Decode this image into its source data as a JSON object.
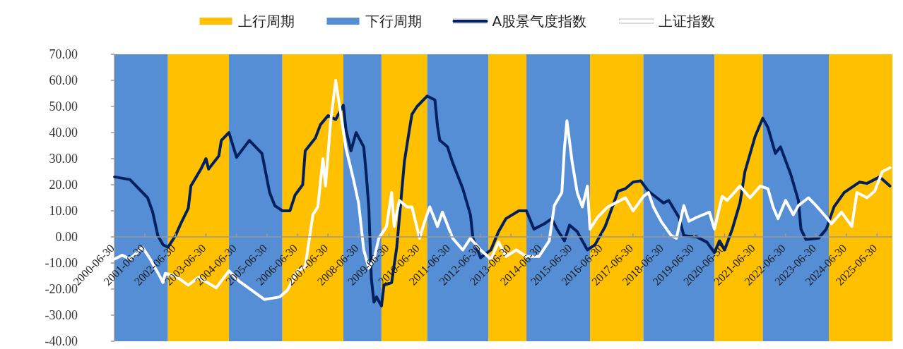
{
  "chart_data": {
    "type": "line",
    "xlim": [
      "2000-06-30",
      "2025-12-31"
    ],
    "xticks": [
      {
        "value": "2000-06-30",
        "label": "2000-06-30"
      },
      {
        "value": "2001-06-30",
        "label": "2001-06-30"
      },
      {
        "value": "2002-06-30",
        "label": "2002-06-30"
      },
      {
        "value": "2003-06-30",
        "label": "2003-06-30"
      },
      {
        "value": "2004-06-30",
        "label": "2004-06-30"
      },
      {
        "value": "2005-06-30",
        "label": "2005-06-30"
      },
      {
        "value": "2006-06-30",
        "label": "2006-06-30"
      },
      {
        "value": "2007-06-30",
        "label": "2007-06-30"
      },
      {
        "value": "2008-06-30",
        "label": "2008-06-30"
      },
      {
        "value": "2009-06-30",
        "label": "2009-06-30"
      },
      {
        "value": "2010-06-30",
        "label": "2010-06-30"
      },
      {
        "value": "2011-06-30",
        "label": "2011-06-30"
      },
      {
        "value": "2012-06-30",
        "label": "2012-06-30"
      },
      {
        "value": "2013-06-30",
        "label": "2013-06-30"
      },
      {
        "value": "2014-06-30",
        "label": "2014-06-30"
      },
      {
        "value": "2015-06-30",
        "label": "2015-06-30"
      },
      {
        "value": "2016-06-30",
        "label": "2016-06-30"
      },
      {
        "value": "2017-06-30",
        "label": "2017-06-30"
      },
      {
        "value": "2018-06-30",
        "label": "2018-06-30"
      },
      {
        "value": "2019-06-30",
        "label": "2019-06-30"
      },
      {
        "value": "2020-06-30",
        "label": "2020-06-30"
      },
      {
        "value": "2021-06-30",
        "label": "2021-06-30"
      },
      {
        "value": "2022-06-30",
        "label": "2022-06-30"
      },
      {
        "value": "2023-06-30",
        "label": "2023-06-30"
      },
      {
        "value": "2024-06-30",
        "label": "2024-06-30"
      },
      {
        "value": "2025-06-30",
        "label": "2025-06-30"
      }
    ],
    "ylim": [
      -40,
      70
    ],
    "yticks": [
      {
        "value": -40,
        "label": "-40.00"
      },
      {
        "value": -30,
        "label": "-30.00"
      },
      {
        "value": -20,
        "label": "-20.00"
      },
      {
        "value": -10,
        "label": "-10.00"
      },
      {
        "value": 0,
        "label": "0.00"
      },
      {
        "value": 10,
        "label": "10.00"
      },
      {
        "value": 20,
        "label": "20.00"
      },
      {
        "value": 30,
        "label": "30.00"
      },
      {
        "value": 40,
        "label": "40.00"
      },
      {
        "value": 50,
        "label": "50.00"
      },
      {
        "value": 60,
        "label": "60.00"
      },
      {
        "value": 70,
        "label": "70.00"
      }
    ],
    "legend": "top",
    "bands": [
      {
        "axis": "x",
        "from": "2000-06-30",
        "to": "2002-04",
        "label": "下行周期",
        "color": "#558ed5"
      },
      {
        "axis": "x",
        "from": "2002-04",
        "to": "2004-04",
        "label": "上行周期",
        "color": "#ffc000"
      },
      {
        "axis": "x",
        "from": "2004-04",
        "to": "2006-01",
        "color": "#558ed5"
      },
      {
        "axis": "x",
        "from": "2006-01",
        "to": "2008-01",
        "color": "#ffc000"
      },
      {
        "axis": "x",
        "from": "2008-01",
        "to": "2009-04",
        "color": "#558ed5"
      },
      {
        "axis": "x",
        "from": "2009-04",
        "to": "2010-10",
        "color": "#ffc000"
      },
      {
        "axis": "x",
        "from": "2010-10",
        "to": "2012-10",
        "color": "#558ed5"
      },
      {
        "axis": "x",
        "from": "2012-10",
        "to": "2014-01",
        "color": "#ffc000"
      },
      {
        "axis": "x",
        "from": "2014-01",
        "to": "2016-02",
        "color": "#558ed5"
      },
      {
        "axis": "x",
        "from": "2016-02",
        "to": "2017-11",
        "color": "#ffc000"
      },
      {
        "axis": "x",
        "from": "2017-11",
        "to": "2020-03",
        "color": "#558ed5"
      },
      {
        "axis": "x",
        "from": "2020-03",
        "to": "2021-10",
        "color": "#ffc000"
      },
      {
        "axis": "x",
        "from": "2021-10",
        "to": "2023-12",
        "color": "#558ed5"
      },
      {
        "axis": "x",
        "from": "2023-12",
        "to": "2025-12-31",
        "color": "#ffc000"
      }
    ],
    "series": [
      {
        "name": "A股景气度指数",
        "color": "#002060",
        "x": [
          "2000-07",
          "2001-01",
          "2001-08",
          "2001-10",
          "2001-12",
          "2002-02",
          "2002-04",
          "2002-07",
          "2002-09",
          "2002-12",
          "2003-01",
          "2003-05",
          "2003-07",
          "2003-08",
          "2003-12",
          "2004-01",
          "2004-04",
          "2004-07",
          "2004-12",
          "2005-05",
          "2005-08",
          "2005-10",
          "2006-01",
          "2006-04",
          "2006-06",
          "2006-09",
          "2006-10",
          "2007-02",
          "2007-04",
          "2007-07",
          "2007-10",
          "2008-01",
          "2008-02",
          "2008-04",
          "2008-06",
          "2008-09",
          "2008-10",
          "2008-11",
          "2008-12",
          "2009-01",
          "2009-02",
          "2009-04",
          "2009-05",
          "2009-08",
          "2009-10",
          "2010-01",
          "2010-03",
          "2010-04",
          "2010-06",
          "2010-10",
          "2011-01",
          "2011-02",
          "2011-03",
          "2011-06",
          "2011-08",
          "2011-12",
          "2012-03",
          "2012-04",
          "2012-07",
          "2012-11",
          "2013-02",
          "2013-05",
          "2013-10",
          "2014-01",
          "2014-04",
          "2014-08",
          "2014-11",
          "2015-01",
          "2015-04",
          "2015-06",
          "2015-09",
          "2016-01",
          "2016-04",
          "2016-08",
          "2016-11",
          "2017-01",
          "2017-04",
          "2017-07",
          "2017-10",
          "2018-01",
          "2018-07",
          "2018-09",
          "2019-01",
          "2019-03",
          "2019-08",
          "2019-12",
          "2020-03",
          "2020-05",
          "2020-07",
          "2020-10",
          "2021-01",
          "2021-03",
          "2021-07",
          "2021-10",
          "2021-12",
          "2022-03",
          "2022-05",
          "2022-09",
          "2022-12",
          "2023-01",
          "2023-03",
          "2023-08",
          "2023-11",
          "2024-02",
          "2024-06",
          "2024-12",
          "2025-03",
          "2025-08",
          "2025-12"
        ],
        "values": [
          23,
          22,
          15,
          9.5,
          0.5,
          -3,
          -4,
          0.5,
          5,
          11,
          19.5,
          26,
          30,
          26,
          31,
          37,
          40,
          30.5,
          37,
          32,
          17,
          12,
          10,
          10,
          16,
          20,
          33,
          38,
          43,
          46.5,
          45,
          50.5,
          41,
          33,
          40,
          34.5,
          24,
          11,
          -16,
          -25,
          -23,
          -26.5,
          -18.5,
          -17.5,
          -4,
          29,
          41,
          47,
          50,
          54,
          52.5,
          42.5,
          37,
          34.5,
          28.5,
          18.5,
          8.5,
          -0.5,
          -8,
          -5,
          2,
          7,
          10,
          10,
          3,
          5,
          7,
          3,
          -1.5,
          4.5,
          2,
          -5,
          -3,
          4,
          12,
          17.5,
          18.5,
          21,
          21.5,
          17.5,
          13,
          14,
          7.5,
          0.5,
          0,
          -2,
          -6,
          -1.5,
          -5,
          3,
          13,
          25,
          38.5,
          45.5,
          42,
          32,
          34.5,
          24,
          14,
          3,
          -1,
          -0.5,
          3,
          11.5,
          17,
          21,
          20.5,
          23,
          19.5
        ]
      },
      {
        "name": "上证指数",
        "color": "#ffffff",
        "x": [
          "2000-07",
          "2000-10",
          "2001-01",
          "2001-06",
          "2001-09",
          "2002-01",
          "2002-02",
          "2002-03",
          "2002-07",
          "2002-12",
          "2003-04",
          "2003-11",
          "2004-04",
          "2004-08",
          "2005-01",
          "2005-06",
          "2005-12",
          "2006-03",
          "2006-07",
          "2006-10",
          "2007-01",
          "2007-03",
          "2007-05",
          "2007-06",
          "2007-08",
          "2007-10",
          "2007-12",
          "2008-02",
          "2008-05",
          "2008-07",
          "2008-09",
          "2008-11",
          "2009-01",
          "2009-03",
          "2009-06",
          "2009-08",
          "2009-09",
          "2009-11",
          "2010-02",
          "2010-04",
          "2010-07",
          "2010-09",
          "2010-11",
          "2011-02",
          "2011-04",
          "2011-08",
          "2011-12",
          "2012-03",
          "2012-07",
          "2012-11",
          "2013-02",
          "2013-05",
          "2013-09",
          "2014-01",
          "2014-06",
          "2014-10",
          "2014-12",
          "2015-03",
          "2015-04",
          "2015-05",
          "2015-07",
          "2015-09",
          "2015-11",
          "2016-01",
          "2016-02",
          "2016-05",
          "2016-09",
          "2016-12",
          "2017-04",
          "2017-07",
          "2017-11",
          "2018-01",
          "2018-03",
          "2018-06",
          "2018-10",
          "2018-12",
          "2019-03",
          "2019-05",
          "2019-08",
          "2020-01",
          "2020-03",
          "2020-06",
          "2020-08",
          "2021-01",
          "2021-05",
          "2021-09",
          "2021-12",
          "2022-02",
          "2022-04",
          "2022-07",
          "2022-10",
          "2022-12",
          "2023-04",
          "2023-07",
          "2023-11",
          "2024-01",
          "2024-05",
          "2024-09",
          "2024-11",
          "2025-03",
          "2025-06",
          "2025-09",
          "2025-12"
        ],
        "values": [
          -8.5,
          -7,
          -8.5,
          -4,
          -8.5,
          -15.5,
          -17.5,
          -14,
          -15,
          -18.5,
          -15.5,
          -19.5,
          -13,
          -17,
          -20.5,
          -24,
          -23,
          -20.5,
          -13,
          -11.5,
          8.5,
          11.5,
          30,
          19.5,
          44,
          60,
          47,
          34,
          22,
          13,
          -5,
          -12,
          -8.5,
          -0.5,
          4,
          17,
          4,
          14,
          11.5,
          11.5,
          -0.5,
          6,
          11.5,
          4,
          9.5,
          -0.5,
          -5,
          -0.5,
          -5,
          -8.5,
          -2,
          -7.5,
          -5,
          -7.5,
          -7.5,
          -1.5,
          12,
          17,
          34,
          44.5,
          29,
          17,
          11.5,
          19.5,
          3,
          7.5,
          11.5,
          13,
          15,
          10,
          15.5,
          17,
          11.5,
          6,
          0.5,
          -0.5,
          12,
          6,
          7.5,
          9.5,
          3,
          15.5,
          14,
          19.5,
          15,
          19.5,
          18.5,
          11.5,
          7,
          14,
          8.5,
          12,
          15,
          12,
          7.5,
          5,
          9.5,
          4,
          17,
          15,
          17.5,
          25,
          26.5
        ]
      }
    ]
  }
}
